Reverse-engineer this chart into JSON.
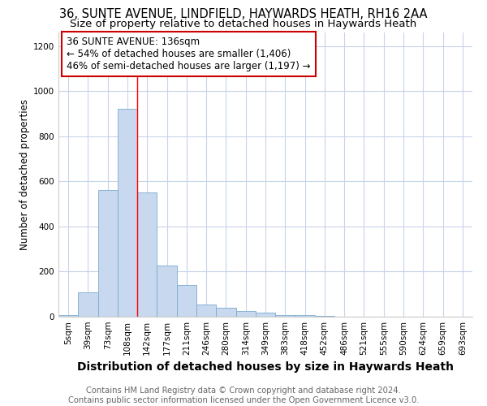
{
  "title1": "36, SUNTE AVENUE, LINDFIELD, HAYWARDS HEATH, RH16 2AA",
  "title2": "Size of property relative to detached houses in Haywards Heath",
  "xlabel": "Distribution of detached houses by size in Haywards Heath",
  "ylabel": "Number of detached properties",
  "categories": [
    "5sqm",
    "39sqm",
    "73sqm",
    "108sqm",
    "142sqm",
    "177sqm",
    "211sqm",
    "246sqm",
    "280sqm",
    "314sqm",
    "349sqm",
    "383sqm",
    "418sqm",
    "452sqm",
    "486sqm",
    "521sqm",
    "555sqm",
    "590sqm",
    "624sqm",
    "659sqm",
    "693sqm"
  ],
  "values": [
    8,
    108,
    560,
    920,
    550,
    228,
    140,
    55,
    40,
    25,
    18,
    8,
    8,
    2,
    0,
    0,
    0,
    0,
    0,
    0,
    0
  ],
  "bar_color": "#c8d8ee",
  "bar_edge_color": "#7aaad0",
  "bar_linewidth": 0.6,
  "red_line_index": 4,
  "annotation_line1": "36 SUNTE AVENUE: 136sqm",
  "annotation_line2": "← 54% of detached houses are smaller (1,406)",
  "annotation_line3": "46% of semi-detached houses are larger (1,197) →",
  "annotation_box_color": "#ffffff",
  "annotation_box_edge_color": "#cc0000",
  "ylim": [
    0,
    1260
  ],
  "yticks": [
    0,
    200,
    400,
    600,
    800,
    1000,
    1200
  ],
  "footer1": "Contains HM Land Registry data © Crown copyright and database right 2024.",
  "footer2": "Contains public sector information licensed under the Open Government Licence v3.0.",
  "background_color": "#ffffff",
  "grid_color": "#c8d4e8",
  "title1_fontsize": 10.5,
  "title2_fontsize": 9.5,
  "xlabel_fontsize": 10,
  "ylabel_fontsize": 8.5,
  "tick_fontsize": 7.5,
  "annotation_fontsize": 8.5,
  "footer_fontsize": 7.2
}
